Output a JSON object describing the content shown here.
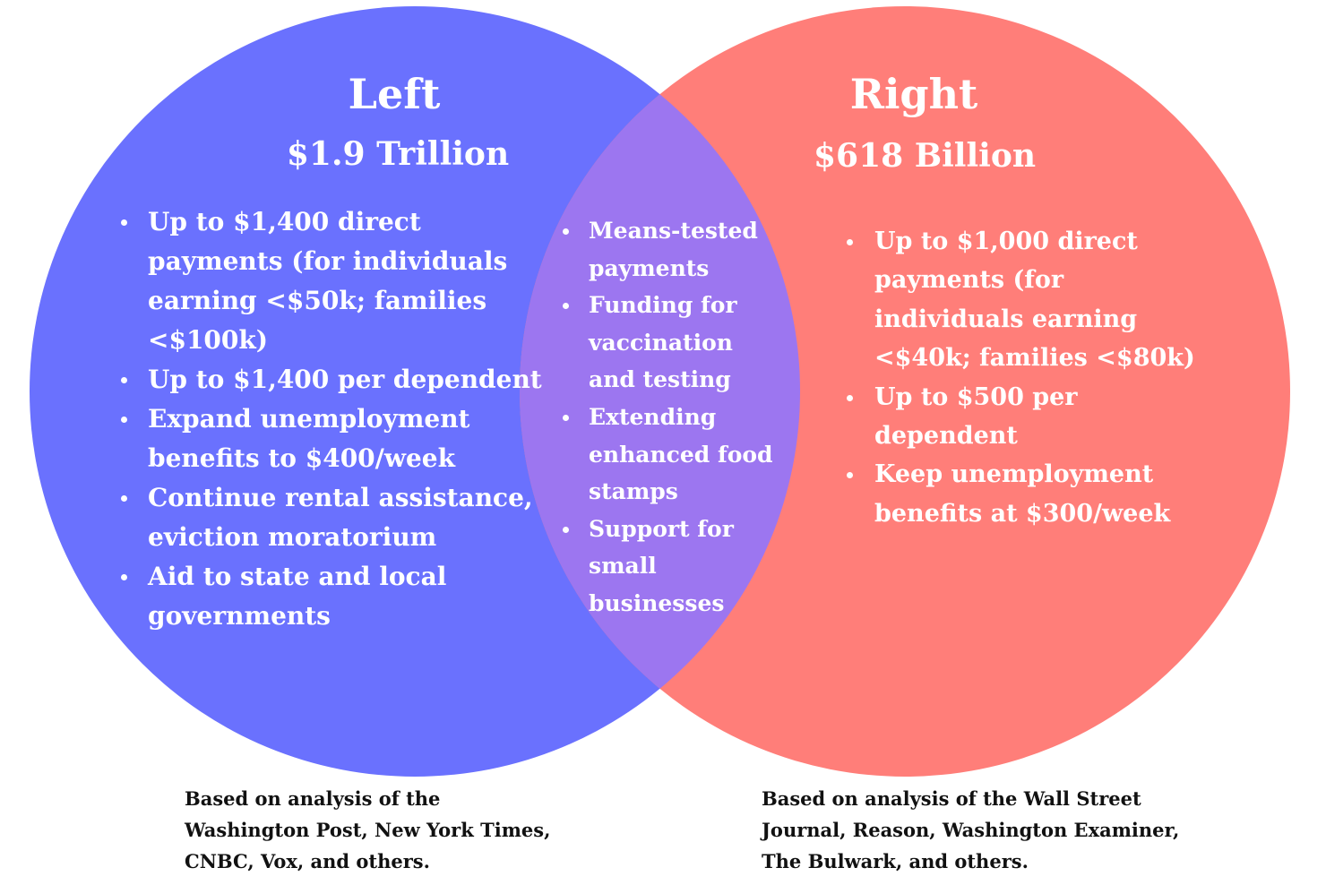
{
  "colors": {
    "left": "#6a71fe",
    "right": "#ff7e79",
    "overlap": "#9c76f0",
    "text": "#ffffff",
    "source_text": "#111111"
  },
  "left": {
    "heading": "Left",
    "amount": "$1.9 Trillion",
    "items": [
      "Up to $1,400 direct payments (for individuals earning <$50k; families <$100k)",
      "Up to $1,400 per dependent",
      "Expand unemployment benefits to $400/week",
      "Continue rental assistance, eviction moratorium",
      "Aid to state and local governments"
    ],
    "source": "Based on analysis of the Washington Post, New York Times, CNBC, Vox, and others."
  },
  "overlap": {
    "items": [
      "Means-tested payments",
      "Funding for vaccination and testing",
      "Extending enhanced food stamps",
      "Support for small businesses"
    ]
  },
  "right": {
    "heading": "Right",
    "amount": "$618 Billion",
    "items": [
      "Up to $1,000 direct payments (for individuals earning <$40k; families <$80k)",
      "Up to $500 per dependent",
      "Keep unemployment benefits at $300/week"
    ],
    "source": "Based on analysis of the Wall Street Journal, Reason, Washington Examiner, The Bulwark, and others."
  }
}
